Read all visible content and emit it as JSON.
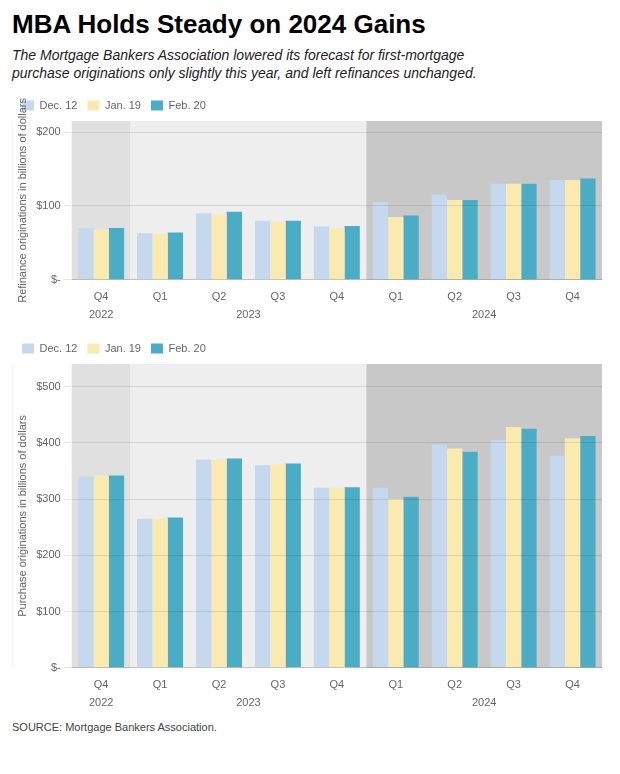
{
  "title": "MBA Holds Steady on 2024 Gains",
  "subtitle": "The Mortgage Bankers Association lowered its forecast for first-mortgage\npurchase originations only slightly this year, and left refinances unchanged.",
  "source": "SOURCE: Mortgage Bankers Association.",
  "chart_data": [
    {
      "type": "bar",
      "ylabel": "Refinance originations in billions of dollars",
      "categories": [
        "Q4",
        "Q1",
        "Q2",
        "Q3",
        "Q4",
        "Q1",
        "Q2",
        "Q3",
        "Q4"
      ],
      "groups": [
        {
          "label": "2022",
          "span": 1,
          "color": "#e0e0e0"
        },
        {
          "label": "2023",
          "span": 4,
          "color": "#eeeeee"
        },
        {
          "label": "2024",
          "span": 4,
          "color": "#c8c8c8"
        }
      ],
      "series": [
        {
          "name": "Dec. 12",
          "color": "#c5d8ed",
          "values": [
            70,
            63,
            90,
            80,
            72,
            105,
            115,
            130,
            135
          ]
        },
        {
          "name": "Jan. 19",
          "color": "#faeab0",
          "values": [
            68,
            62,
            88,
            78,
            70,
            85,
            108,
            130,
            135
          ]
        },
        {
          "name": "Feb. 20",
          "color": "#4bacc6",
          "values": [
            70,
            64,
            92,
            80,
            73,
            87,
            108,
            130,
            137
          ]
        }
      ],
      "ylim": [
        0,
        215
      ],
      "yticks": [
        {
          "value": 0,
          "label": "$-"
        },
        {
          "value": 100,
          "label": "$100"
        },
        {
          "value": 200,
          "label": "$200"
        }
      ],
      "grid": true,
      "legend": "upper left"
    },
    {
      "type": "bar",
      "ylabel": "Purchase originations in billions of dollars",
      "categories": [
        "Q4",
        "Q1",
        "Q2",
        "Q3",
        "Q4",
        "Q1",
        "Q2",
        "Q3",
        "Q4"
      ],
      "groups": [
        {
          "label": "2022",
          "span": 1,
          "color": "#e0e0e0"
        },
        {
          "label": "2023",
          "span": 4,
          "color": "#eeeeee"
        },
        {
          "label": "2024",
          "span": 4,
          "color": "#c8c8c8"
        }
      ],
      "series": [
        {
          "name": "Dec. 12",
          "color": "#c5d8ed",
          "values": [
            340,
            265,
            370,
            360,
            320,
            320,
            397,
            405,
            377
          ]
        },
        {
          "name": "Jan. 19",
          "color": "#faeab0",
          "values": [
            342,
            265,
            370,
            362,
            320,
            300,
            390,
            428,
            408
          ]
        },
        {
          "name": "Feb. 20",
          "color": "#4bacc6",
          "values": [
            342,
            267,
            372,
            363,
            321,
            304,
            384,
            425,
            412
          ]
        }
      ],
      "ylim": [
        0,
        540
      ],
      "yticks": [
        {
          "value": 0,
          "label": "$-"
        },
        {
          "value": 100,
          "label": "$100"
        },
        {
          "value": 200,
          "label": "$200"
        },
        {
          "value": 300,
          "label": "$300"
        },
        {
          "value": 400,
          "label": "$400"
        },
        {
          "value": 500,
          "label": "$500"
        }
      ],
      "grid": true,
      "legend": "upper left"
    }
  ]
}
